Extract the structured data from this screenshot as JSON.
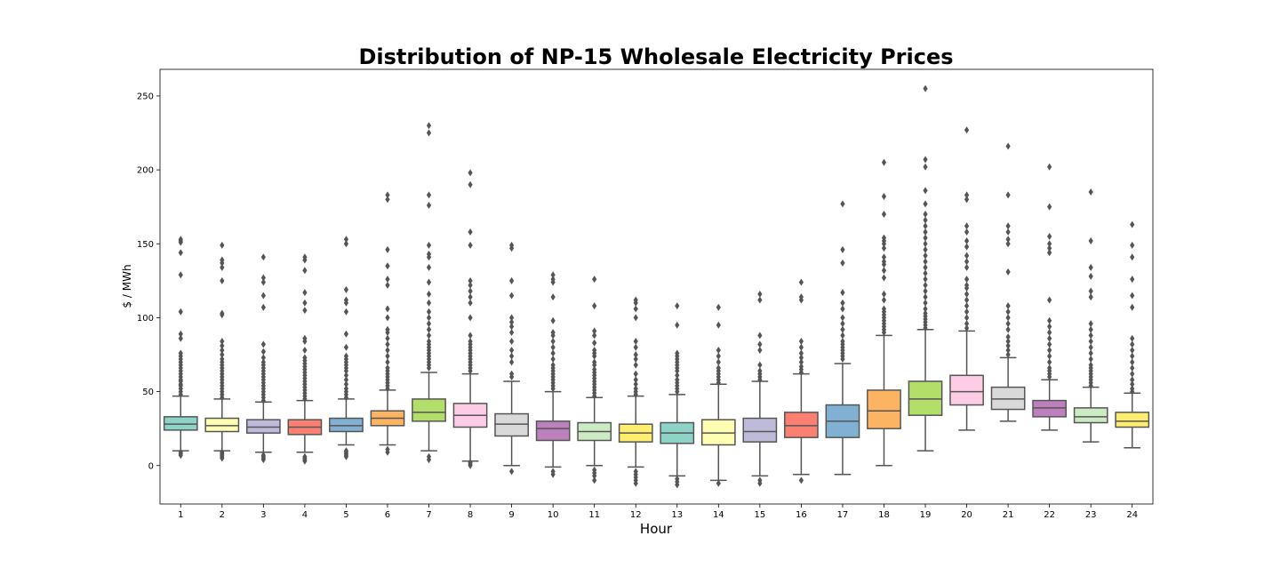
{
  "chart_data": {
    "type": "box",
    "title": "Distribution of NP-15 Wholesale Electricity Prices",
    "xlabel": "Hour",
    "ylabel": "$ / MWh",
    "ylim": [
      -26,
      268
    ],
    "yticks": [
      0,
      50,
      100,
      150,
      200,
      250
    ],
    "grid": false,
    "legend": "none",
    "categories": [
      "1",
      "2",
      "3",
      "4",
      "5",
      "6",
      "7",
      "8",
      "9",
      "10",
      "11",
      "12",
      "13",
      "14",
      "15",
      "16",
      "17",
      "18",
      "19",
      "20",
      "21",
      "22",
      "23",
      "24"
    ],
    "colors": [
      "#8dd3c7",
      "#ffffb3",
      "#bebada",
      "#fb8072",
      "#80b1d3",
      "#fdb462",
      "#b3de69",
      "#fccde5",
      "#d9d9d9",
      "#bc80bd",
      "#ccebc5",
      "#ffed6f",
      "#8dd3c7",
      "#ffffb3",
      "#bebada",
      "#fb8072",
      "#80b1d3",
      "#fdb462",
      "#b3de69",
      "#fccde5",
      "#d9d9d9",
      "#bc80bd",
      "#ccebc5",
      "#ffed6f"
    ],
    "boxes": [
      {
        "hour": "1",
        "whisker_low": 10,
        "q1": 24,
        "median": 28,
        "q3": 33,
        "whisker_high": 47,
        "outliers": [
          7,
          8,
          9,
          48,
          50,
          52,
          54,
          55,
          57,
          58,
          60,
          62,
          64,
          66,
          68,
          70,
          72,
          74,
          76,
          86,
          89,
          104,
          129,
          144,
          151,
          152,
          153
        ]
      },
      {
        "hour": "2",
        "whisker_low": 10,
        "q1": 23,
        "median": 27,
        "q3": 32,
        "whisker_high": 45,
        "outliers": [
          5,
          6,
          7,
          8,
          9,
          46,
          48,
          50,
          52,
          54,
          56,
          58,
          60,
          62,
          64,
          66,
          68,
          70,
          72,
          75,
          78,
          81,
          84,
          102,
          103,
          125,
          134,
          137,
          139,
          149
        ]
      },
      {
        "hour": "3",
        "whisker_low": 9,
        "q1": 22,
        "median": 26,
        "q3": 31,
        "whisker_high": 43,
        "outliers": [
          4,
          5,
          6,
          7,
          44,
          46,
          48,
          50,
          52,
          54,
          56,
          58,
          60,
          62,
          64,
          66,
          68,
          70,
          73,
          77,
          82,
          107,
          115,
          124,
          127,
          141
        ]
      },
      {
        "hour": "4",
        "whisker_low": 9,
        "q1": 21,
        "median": 26,
        "q3": 31,
        "whisker_high": 44,
        "outliers": [
          3,
          4,
          5,
          6,
          45,
          47,
          49,
          51,
          53,
          55,
          57,
          59,
          61,
          63,
          65,
          67,
          69,
          71,
          73,
          78,
          84,
          86,
          105,
          110,
          117,
          132,
          139,
          141
        ]
      },
      {
        "hour": "5",
        "whisker_low": 14,
        "q1": 23,
        "median": 27,
        "q3": 32,
        "whisker_high": 45,
        "outliers": [
          6,
          7,
          8,
          9,
          10,
          46,
          48,
          50,
          52,
          55,
          58,
          61,
          64,
          66,
          68,
          70,
          72,
          74,
          80,
          89,
          104,
          110,
          112,
          119,
          150,
          153
        ]
      },
      {
        "hour": "6",
        "whisker_low": 14,
        "q1": 27,
        "median": 32,
        "q3": 37,
        "whisker_high": 51,
        "outliers": [
          9,
          11,
          52,
          54,
          56,
          58,
          60,
          62,
          64,
          66,
          70,
          74,
          78,
          82,
          86,
          90,
          92,
          100,
          106,
          122,
          126,
          135,
          146,
          180,
          183
        ]
      },
      {
        "hour": "7",
        "whisker_low": 10,
        "q1": 30,
        "median": 36,
        "q3": 45,
        "whisker_high": 63,
        "outliers": [
          4,
          6,
          66,
          68,
          70,
          72,
          74,
          76,
          78,
          80,
          82,
          84,
          88,
          92,
          96,
          100,
          104,
          110,
          116,
          124,
          134,
          141,
          143,
          149,
          176,
          183,
          225,
          230
        ]
      },
      {
        "hour": "8",
        "whisker_low": 3,
        "q1": 26,
        "median": 34,
        "q3": 42,
        "whisker_high": 62,
        "outliers": [
          0,
          1,
          2,
          64,
          66,
          68,
          70,
          72,
          74,
          76,
          78,
          80,
          82,
          84,
          88,
          100,
          110,
          114,
          118,
          122,
          125,
          149,
          158,
          190,
          198
        ]
      },
      {
        "hour": "9",
        "whisker_low": 0,
        "q1": 20,
        "median": 28,
        "q3": 35,
        "whisker_high": 57,
        "outliers": [
          -4,
          60,
          62,
          70,
          74,
          78,
          84,
          90,
          94,
          97,
          100,
          115,
          125,
          147,
          149
        ]
      },
      {
        "hour": "10",
        "whisker_low": -1,
        "q1": 17,
        "median": 25,
        "q3": 30,
        "whisker_high": 50,
        "outliers": [
          -6,
          -4,
          52,
          54,
          56,
          58,
          60,
          62,
          64,
          66,
          68,
          72,
          76,
          80,
          84,
          88,
          90,
          98,
          114,
          124,
          126,
          129
        ]
      },
      {
        "hour": "11",
        "whisker_low": 0,
        "q1": 17,
        "median": 23,
        "q3": 29,
        "whisker_high": 46,
        "outliers": [
          -10,
          -7,
          -5,
          -3,
          47,
          49,
          51,
          53,
          55,
          57,
          59,
          61,
          63,
          65,
          68,
          70,
          74,
          76,
          78,
          83,
          88,
          91,
          108,
          126
        ]
      },
      {
        "hour": "12",
        "whisker_low": -1,
        "q1": 16,
        "median": 22,
        "q3": 28,
        "whisker_high": 47,
        "outliers": [
          -12,
          -10,
          -8,
          -6,
          -4,
          48,
          50,
          52,
          55,
          58,
          62,
          68,
          72,
          75,
          80,
          84,
          100,
          106,
          110,
          112
        ]
      },
      {
        "hour": "13",
        "whisker_low": -7,
        "q1": 15,
        "median": 22,
        "q3": 29,
        "whisker_high": 48,
        "outliers": [
          -13,
          -11,
          -9,
          50,
          52,
          54,
          56,
          58,
          61,
          64,
          66,
          68,
          70,
          72,
          74,
          76,
          95,
          108
        ]
      },
      {
        "hour": "14",
        "whisker_low": -10,
        "q1": 14,
        "median": 22,
        "q3": 31,
        "whisker_high": 55,
        "outliers": [
          -12,
          56,
          58,
          60,
          62,
          64,
          66,
          70,
          74,
          78,
          95,
          107
        ]
      },
      {
        "hour": "15",
        "whisker_low": -7,
        "q1": 16,
        "median": 23,
        "q3": 32,
        "whisker_high": 57,
        "outliers": [
          -12,
          -10,
          58,
          60,
          62,
          64,
          68,
          78,
          82,
          88,
          112,
          116
        ]
      },
      {
        "hour": "16",
        "whisker_low": -6,
        "q1": 19,
        "median": 27,
        "q3": 36,
        "whisker_high": 62,
        "outliers": [
          -10,
          63,
          65,
          67,
          70,
          73,
          76,
          80,
          84,
          112,
          114,
          124
        ]
      },
      {
        "hour": "17",
        "whisker_low": -6,
        "q1": 19,
        "median": 30,
        "q3": 41,
        "whisker_high": 69,
        "outliers": [
          72,
          74,
          76,
          78,
          80,
          82,
          84,
          88,
          92,
          96,
          100,
          106,
          110,
          117,
          137,
          146,
          177
        ]
      },
      {
        "hour": "18",
        "whisker_low": 0,
        "q1": 25,
        "median": 37,
        "q3": 51,
        "whisker_high": 88,
        "outliers": [
          90,
          92,
          94,
          96,
          98,
          100,
          102,
          104,
          106,
          112,
          116,
          127,
          132,
          136,
          138,
          141,
          147,
          150,
          152,
          154,
          170,
          182,
          205
        ]
      },
      {
        "hour": "19",
        "whisker_low": 10,
        "q1": 34,
        "median": 45,
        "q3": 57,
        "whisker_high": 92,
        "outliers": [
          93,
          95,
          97,
          99,
          101,
          103,
          106,
          110,
          114,
          118,
          122,
          126,
          130,
          134,
          138,
          142,
          146,
          150,
          154,
          158,
          162,
          166,
          170,
          177,
          186,
          202,
          207,
          255
        ]
      },
      {
        "hour": "20",
        "whisker_low": 24,
        "q1": 41,
        "median": 50,
        "q3": 61,
        "whisker_high": 91,
        "outliers": [
          93,
          96,
          100,
          104,
          108,
          112,
          116,
          120,
          122,
          126,
          134,
          138,
          142,
          148,
          152,
          158,
          162,
          180,
          183,
          227
        ]
      },
      {
        "hour": "21",
        "whisker_low": 30,
        "q1": 38,
        "median": 45,
        "q3": 53,
        "whisker_high": 73,
        "outliers": [
          75,
          78,
          81,
          84,
          87,
          92,
          96,
          100,
          104,
          108,
          131,
          150,
          153,
          158,
          162,
          183,
          216
        ]
      },
      {
        "hour": "22",
        "whisker_low": 24,
        "q1": 33,
        "median": 39,
        "q3": 44,
        "whisker_high": 58,
        "outliers": [
          60,
          62,
          64,
          66,
          70,
          74,
          78,
          82,
          86,
          90,
          94,
          98,
          112,
          144,
          147,
          150,
          155,
          175,
          202
        ]
      },
      {
        "hour": "23",
        "whisker_low": 16,
        "q1": 29,
        "median": 33,
        "q3": 39,
        "whisker_high": 53,
        "outliers": [
          54,
          56,
          58,
          60,
          62,
          64,
          66,
          68,
          72,
          76,
          80,
          84,
          88,
          92,
          96,
          114,
          118,
          128,
          134,
          152,
          185
        ]
      },
      {
        "hour": "24",
        "whisker_low": 12,
        "q1": 26,
        "median": 30,
        "q3": 36,
        "whisker_high": 49,
        "outliers": [
          50,
          52,
          55,
          58,
          62,
          66,
          70,
          74,
          78,
          82,
          86,
          107,
          115,
          126,
          141,
          149,
          163
        ]
      }
    ]
  }
}
